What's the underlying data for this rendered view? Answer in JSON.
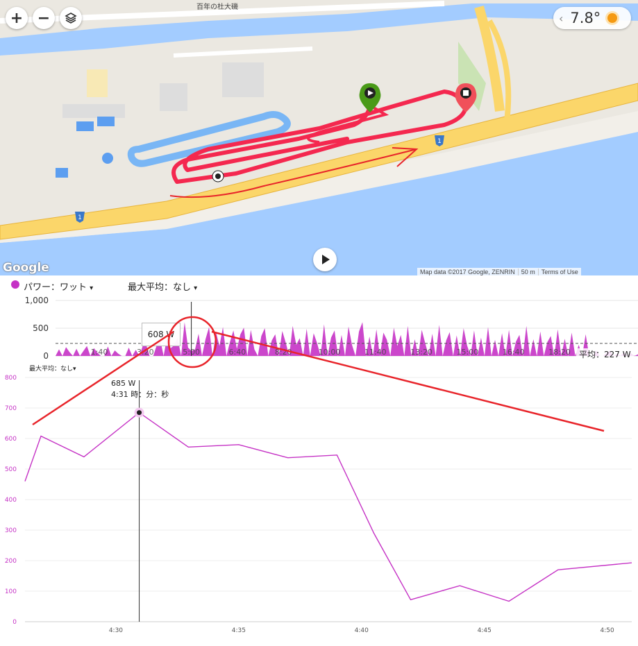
{
  "map": {
    "zoom_in_label": "+",
    "zoom_out_label": "−",
    "place_label": "百年の杜大磯",
    "route_shield": "1",
    "weather": {
      "temperature": "7.8°"
    },
    "attribution": {
      "map_data": "Map data ©2017 Google, ZENRIN",
      "scale": "50 m",
      "terms": "Terms of Use"
    },
    "logo": "Google",
    "colors": {
      "route": "#f4284f",
      "start_marker": "#4a9a18",
      "end_marker": "#f0505a"
    }
  },
  "chart_header": {
    "metric_label": "パワー：ワット",
    "metric_dropdown": "▾",
    "max_avg_label": "最大平均：なし",
    "max_avg_dropdown": "▾"
  },
  "overview": {
    "callout_value": "608 W",
    "average_label": "平均：227 W"
  },
  "detail": {
    "max_avg_label": "最大平均：なし▾",
    "peak_value": "685 W",
    "peak_time": "4:31 時：分：秒"
  },
  "chart_data": [
    {
      "type": "area",
      "yticks": [
        "1,000",
        "500",
        "0"
      ],
      "ylim": [
        0,
        1000
      ],
      "xticks": [
        "1:40",
        "3:20",
        "5:00",
        "6:40",
        "8:20",
        "10:00",
        "11:40",
        "13:20",
        "15:00",
        "16:40",
        "18:20"
      ],
      "average": 227,
      "cursor": 5.0,
      "values": [
        0,
        120,
        0,
        160,
        70,
        0,
        130,
        0,
        90,
        180,
        0,
        140,
        60,
        0,
        0,
        170,
        0,
        100,
        40,
        0,
        0,
        150,
        0,
        110,
        0,
        180,
        200,
        0,
        0,
        190,
        300,
        0,
        360,
        140,
        190,
        330,
        0,
        608,
        150,
        90,
        120,
        400,
        0,
        300,
        520,
        0,
        430,
        180,
        520,
        0,
        250,
        460,
        130,
        390,
        510,
        0,
        470,
        120,
        0,
        360,
        500,
        0,
        280,
        390,
        0,
        450,
        240,
        0,
        540,
        200,
        320,
        0,
        490,
        0,
        410,
        230,
        0,
        570,
        0,
        330,
        460,
        0,
        380,
        0,
        530,
        200,
        0,
        440,
        610,
        0,
        350,
        0,
        480,
        0,
        420,
        290,
        0,
        510,
        180,
        380,
        0,
        540,
        0,
        300,
        0,
        470,
        230,
        0,
        400,
        0,
        560,
        0,
        280,
        430,
        0,
        370,
        0,
        500,
        190,
        0,
        460,
        0,
        330,
        0,
        520,
        0,
        290,
        0,
        410,
        0,
        470,
        0,
        260,
        380,
        0,
        540,
        0,
        300,
        0,
        440,
        0,
        250,
        360,
        0,
        480,
        0,
        310,
        0,
        420,
        0,
        200,
        0,
        390,
        0,
        0,
        100,
        0,
        0,
        60,
        90,
        0,
        40,
        0,
        70,
        0,
        50,
        0,
        30
      ]
    },
    {
      "type": "line",
      "yticks": [
        "800",
        "700",
        "600",
        "500",
        "400",
        "300",
        "200",
        "100",
        "0"
      ],
      "ylim": [
        0,
        800
      ],
      "xticks": [
        "4:30",
        "4:35",
        "4:40",
        "4:45",
        "4:50"
      ],
      "xlim": [
        26.3,
        51.0
      ],
      "x": [
        26.3,
        26.95,
        28.7,
        30.95,
        32.95,
        35.0,
        37.0,
        39.0,
        40.5,
        42.0,
        44.0,
        46.0,
        48.0,
        51.0
      ],
      "values": [
        460,
        608,
        540,
        685,
        572,
        580,
        537,
        546,
        290,
        72,
        118,
        67,
        170,
        193
      ],
      "highlight": {
        "x": 30.95,
        "value": 685
      }
    }
  ]
}
